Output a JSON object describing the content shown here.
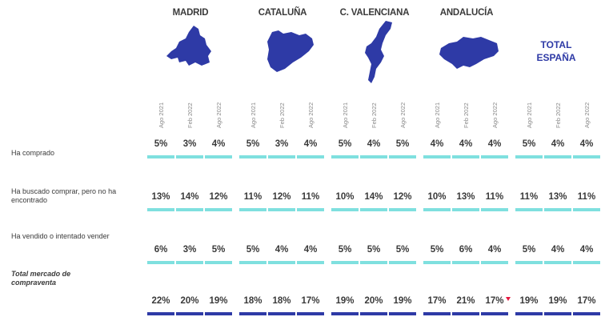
{
  "chart_data": {
    "type": "table",
    "regions": [
      "MADRID",
      "CATALUÑA",
      "C. VALENCIANA",
      "ANDALUCÍA"
    ],
    "total_label_line1": "TOTAL",
    "total_label_line2": "ESPAÑA",
    "periods": [
      "Ago 2021",
      "Feb 2022",
      "Ago 2022"
    ],
    "rows": [
      {
        "label_lines": [
          "Ha comprado"
        ],
        "style": "normal",
        "values": [
          "5%",
          "3%",
          "4%",
          "5%",
          "3%",
          "4%",
          "5%",
          "4%",
          "5%",
          "4%",
          "4%",
          "4%",
          "5%",
          "4%",
          "4%"
        ]
      },
      {
        "label_lines": [
          "Ha buscado comprar, pero no ha",
          "encontrado"
        ],
        "style": "normal",
        "values": [
          "13%",
          "14%",
          "12%",
          "11%",
          "12%",
          "11%",
          "10%",
          "14%",
          "12%",
          "10%",
          "13%",
          "11%",
          "11%",
          "13%",
          "11%"
        ]
      },
      {
        "label_lines": [
          "Ha vendido o intentado vender"
        ],
        "style": "normal",
        "values": [
          "6%",
          "3%",
          "5%",
          "5%",
          "4%",
          "4%",
          "5%",
          "5%",
          "5%",
          "5%",
          "6%",
          "4%",
          "5%",
          "4%",
          "4%"
        ]
      },
      {
        "label_lines": [
          "Total mercado de",
          "compraventa"
        ],
        "style": "total",
        "values": [
          "22%",
          "20%",
          "19%",
          "18%",
          "18%",
          "17%",
          "19%",
          "20%",
          "19%",
          "17%",
          "21%",
          "17%",
          "19%",
          "19%",
          "17%"
        ]
      }
    ],
    "flagged_cell": {
      "row": 3,
      "col": 11,
      "marker": "red-down-triangle"
    },
    "colors": {
      "accent": "#2e3aa6",
      "bar_light": "#7fe0df",
      "bar_dark": "#2e3aa6",
      "flag": "#e5173f"
    }
  }
}
